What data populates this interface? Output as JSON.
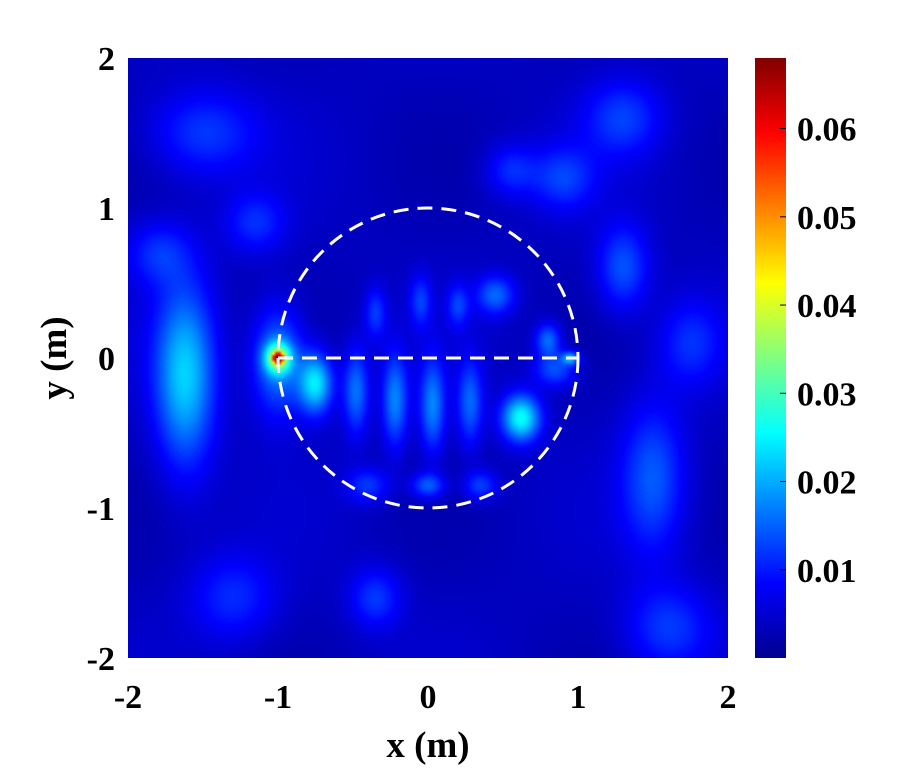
{
  "chart_data": {
    "type": "heatmap",
    "title": "",
    "xlabel": "x (m)",
    "ylabel": "y (m)",
    "xlim": [
      -2,
      2
    ],
    "ylim": [
      -2,
      2
    ],
    "x_ticks": [
      "-2",
      "-1",
      "0",
      "1",
      "2"
    ],
    "x_tick_values": [
      -2,
      -1,
      0,
      1,
      2
    ],
    "y_ticks": [
      "-2",
      "-1",
      "0",
      "1",
      "2"
    ],
    "y_tick_values": [
      -2,
      -1,
      0,
      1,
      2
    ],
    "colormap": "jet",
    "colorbar": {
      "range": [
        0,
        0.068
      ],
      "ticks": [
        "0.01",
        "0.02",
        "0.03",
        "0.04",
        "0.05",
        "0.06"
      ],
      "tick_values": [
        0.01,
        0.02,
        0.03,
        0.04,
        0.05,
        0.06
      ]
    },
    "overlays": [
      {
        "shape": "circle",
        "center": [
          0,
          0
        ],
        "radius": 1,
        "style": "dashed",
        "color": "#ffffff"
      },
      {
        "shape": "line",
        "from": [
          -1,
          0
        ],
        "to": [
          1,
          0
        ],
        "style": "dashed",
        "color": "#ffffff"
      }
    ],
    "field_blobs": [
      {
        "x": -1.0,
        "y": 0.0,
        "sx": 0.02,
        "sy": 0.02,
        "value": 0.066
      },
      {
        "x": -1.0,
        "y": 0.0,
        "sx": 0.06,
        "sy": 0.07,
        "value": 0.025
      },
      {
        "x": -1.0,
        "y": -0.02,
        "sx": 0.12,
        "sy": 0.25,
        "value": 0.014
      },
      {
        "x": -1.62,
        "y": -0.12,
        "sx": 0.14,
        "sy": 0.42,
        "value": 0.018
      },
      {
        "x": -0.75,
        "y": -0.17,
        "sx": 0.08,
        "sy": 0.14,
        "value": 0.02
      },
      {
        "x": -0.48,
        "y": -0.22,
        "sx": 0.06,
        "sy": 0.2,
        "value": 0.012
      },
      {
        "x": -0.22,
        "y": -0.28,
        "sx": 0.06,
        "sy": 0.22,
        "value": 0.013
      },
      {
        "x": 0.03,
        "y": -0.32,
        "sx": 0.06,
        "sy": 0.22,
        "value": 0.013
      },
      {
        "x": 0.28,
        "y": -0.3,
        "sx": 0.06,
        "sy": 0.2,
        "value": 0.011
      },
      {
        "x": 0.62,
        "y": -0.4,
        "sx": 0.09,
        "sy": 0.11,
        "value": 0.022
      },
      {
        "x": 0.8,
        "y": 0.12,
        "sx": 0.06,
        "sy": 0.08,
        "value": 0.012
      },
      {
        "x": 0.45,
        "y": 0.42,
        "sx": 0.09,
        "sy": 0.09,
        "value": 0.011
      },
      {
        "x": 0.85,
        "y": -0.08,
        "sx": 0.1,
        "sy": 0.08,
        "value": 0.01
      },
      {
        "x": 0.95,
        "y": 0.0,
        "sx": 0.04,
        "sy": 0.03,
        "value": 0.015
      },
      {
        "x": -0.35,
        "y": 0.3,
        "sx": 0.05,
        "sy": 0.12,
        "value": 0.008
      },
      {
        "x": -0.05,
        "y": 0.38,
        "sx": 0.05,
        "sy": 0.12,
        "value": 0.008
      },
      {
        "x": 0.2,
        "y": 0.35,
        "sx": 0.05,
        "sy": 0.1,
        "value": 0.008
      },
      {
        "x": -0.4,
        "y": -0.85,
        "sx": 0.1,
        "sy": 0.08,
        "value": 0.008
      },
      {
        "x": 0.0,
        "y": -0.85,
        "sx": 0.08,
        "sy": 0.06,
        "value": 0.011
      },
      {
        "x": 0.35,
        "y": -0.85,
        "sx": 0.08,
        "sy": 0.07,
        "value": 0.009
      },
      {
        "x": 1.3,
        "y": 0.6,
        "sx": 0.12,
        "sy": 0.2,
        "value": 0.01
      },
      {
        "x": 1.5,
        "y": -0.8,
        "sx": 0.15,
        "sy": 0.35,
        "value": 0.01
      },
      {
        "x": -1.5,
        "y": 1.5,
        "sx": 0.25,
        "sy": 0.2,
        "value": 0.008
      },
      {
        "x": 1.3,
        "y": 1.6,
        "sx": 0.18,
        "sy": 0.18,
        "value": 0.008
      },
      {
        "x": 0.9,
        "y": 1.2,
        "sx": 0.15,
        "sy": 0.15,
        "value": 0.008
      },
      {
        "x": 0.55,
        "y": 1.25,
        "sx": 0.12,
        "sy": 0.12,
        "value": 0.007
      },
      {
        "x": -0.35,
        "y": -1.6,
        "sx": 0.12,
        "sy": 0.14,
        "value": 0.008
      },
      {
        "x": -1.3,
        "y": -1.6,
        "sx": 0.2,
        "sy": 0.2,
        "value": 0.007
      },
      {
        "x": 1.6,
        "y": -1.8,
        "sx": 0.2,
        "sy": 0.2,
        "value": 0.008
      },
      {
        "x": -1.8,
        "y": 0.7,
        "sx": 0.15,
        "sy": 0.15,
        "value": 0.007
      },
      {
        "x": 1.75,
        "y": 0.1,
        "sx": 0.15,
        "sy": 0.2,
        "value": 0.007
      },
      {
        "x": -1.15,
        "y": 0.9,
        "sx": 0.14,
        "sy": 0.14,
        "value": 0.007
      }
    ],
    "background_value": 0.003
  }
}
